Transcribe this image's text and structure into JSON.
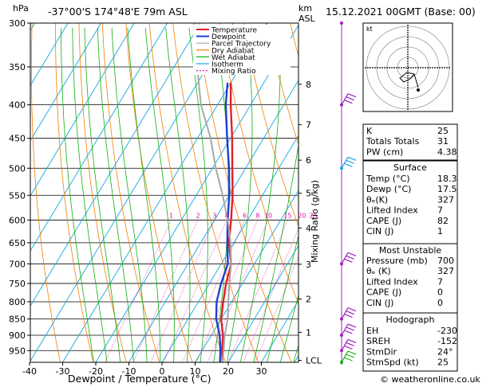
{
  "header": {
    "location": "-37°00'S  174°48'E  79m  ASL",
    "datetime": "15.12.2021  00GMT  (Base: 00)",
    "pressure_unit": "hPa",
    "alt_unit_1": "km",
    "alt_unit_2": "ASL",
    "credit": "© weatheronline.co.uk"
  },
  "colors": {
    "temperature": "#e0202a",
    "dewpoint": "#2040d0",
    "parcel": "#a8a8a8",
    "dry_adiabat": "#f08000",
    "wet_adiabat": "#10b010",
    "isotherm": "#10a8e0",
    "mixing_ratio": "#e010a0",
    "wind": "#a020c0",
    "wind_surface": "#10b010",
    "wind_mid": "#10a8e0"
  },
  "chart_data": {
    "type": "line",
    "title": "",
    "xlabel": "Dewpoint / Temperature (°C)",
    "ylabel": "Mixing Ratio (g/kg)",
    "xlim": [
      -40,
      38
    ],
    "x_ticks": [
      -40,
      -30,
      -20,
      -10,
      0,
      10,
      20,
      30
    ],
    "pressure_levels": [
      300,
      350,
      400,
      450,
      500,
      550,
      600,
      650,
      700,
      750,
      800,
      850,
      900,
      950
    ],
    "altitude_km": [
      {
        "label": "8",
        "p": 372
      },
      {
        "label": "7",
        "p": 429
      },
      {
        "label": "6",
        "p": 486
      },
      {
        "label": "5",
        "p": 546
      },
      {
        "label": "4",
        "p": 617
      },
      {
        "label": "3",
        "p": 701
      },
      {
        "label": "2",
        "p": 792
      },
      {
        "label": "1",
        "p": 891
      },
      {
        "label": "LCL",
        "p": 983
      }
    ],
    "mixing_ratio_labels": [
      "1",
      "2",
      "3",
      "4",
      "6",
      "8",
      "10",
      "15",
      "20",
      "25"
    ],
    "mixing_ratio_values": [
      1,
      2,
      3,
      4,
      6,
      8,
      10,
      15,
      20,
      25
    ],
    "legend": [
      "Temperature",
      "Dewpoint",
      "Parcel Trajectory",
      "Dry Adiabat",
      "Wet Adiabat",
      "Isotherm",
      "Mixing Ratio"
    ],
    "series": [
      {
        "name": "Temperature",
        "points": [
          {
            "p": 990,
            "t": 18.3
          },
          {
            "p": 950,
            "t": 16
          },
          {
            "p": 900,
            "t": 13.5
          },
          {
            "p": 850,
            "t": 10
          },
          {
            "p": 800,
            "t": 7.5
          },
          {
            "p": 750,
            "t": 5
          },
          {
            "p": 700,
            "t": 3
          },
          {
            "p": 650,
            "t": -1.5
          },
          {
            "p": 600,
            "t": -5
          },
          {
            "p": 550,
            "t": -9
          },
          {
            "p": 500,
            "t": -14
          },
          {
            "p": 450,
            "t": -19.5
          },
          {
            "p": 400,
            "t": -26
          },
          {
            "p": 370,
            "t": -30
          }
        ]
      },
      {
        "name": "Dewpoint",
        "points": [
          {
            "p": 990,
            "t": 17.5
          },
          {
            "p": 950,
            "t": 15.5
          },
          {
            "p": 900,
            "t": 12.5
          },
          {
            "p": 850,
            "t": 8.5
          },
          {
            "p": 800,
            "t": 5.5
          },
          {
            "p": 750,
            "t": 3.5
          },
          {
            "p": 700,
            "t": 2
          },
          {
            "p": 650,
            "t": -2
          },
          {
            "p": 600,
            "t": -6
          },
          {
            "p": 550,
            "t": -10
          },
          {
            "p": 500,
            "t": -15
          },
          {
            "p": 450,
            "t": -21
          },
          {
            "p": 400,
            "t": -27.5
          },
          {
            "p": 370,
            "t": -31
          }
        ]
      },
      {
        "name": "Parcel Trajectory",
        "points": [
          {
            "p": 990,
            "t": 18.3
          },
          {
            "p": 950,
            "t": 16.5
          },
          {
            "p": 900,
            "t": 14
          },
          {
            "p": 850,
            "t": 12
          },
          {
            "p": 800,
            "t": 9
          },
          {
            "p": 750,
            "t": 6
          },
          {
            "p": 700,
            "t": 3
          },
          {
            "p": 650,
            "t": -1
          },
          {
            "p": 600,
            "t": -6
          },
          {
            "p": 550,
            "t": -12
          },
          {
            "p": 500,
            "t": -19
          },
          {
            "p": 450,
            "t": -26
          },
          {
            "p": 400,
            "t": -35
          },
          {
            "p": 350,
            "t": -43
          },
          {
            "p": 300,
            "t": -52
          }
        ]
      }
    ],
    "wind_levels": [
      300,
      400,
      500,
      700,
      850,
      900,
      950,
      990
    ]
  },
  "hodograph": {
    "label": "kt"
  },
  "indices": {
    "rows": [
      {
        "label": "K",
        "value": "25"
      },
      {
        "label": "Totals Totals",
        "value": "31"
      },
      {
        "label": "PW (cm)",
        "value": "4.38"
      }
    ]
  },
  "surface": {
    "title": "Surface",
    "rows": [
      {
        "label": "Temp (°C)",
        "value": "18.3"
      },
      {
        "label": "Dewp (°C)",
        "value": "17.5"
      },
      {
        "label": "θₑ(K)",
        "value": "327"
      },
      {
        "label": "Lifted Index",
        "value": "7"
      },
      {
        "label": "CAPE (J)",
        "value": "82"
      },
      {
        "label": "CIN (J)",
        "value": "1"
      }
    ]
  },
  "most_unstable": {
    "title": "Most Unstable",
    "rows": [
      {
        "label": "Pressure (mb)",
        "value": "700"
      },
      {
        "label": "θₑ (K)",
        "value": "327"
      },
      {
        "label": "Lifted Index",
        "value": "7"
      },
      {
        "label": "CAPE (J)",
        "value": "0"
      },
      {
        "label": "CIN (J)",
        "value": "0"
      }
    ]
  },
  "hodograph_table": {
    "title": "Hodograph",
    "rows": [
      {
        "label": "EH",
        "value": "-230"
      },
      {
        "label": "SREH",
        "value": "-152"
      },
      {
        "label": "StmDir",
        "value": "24°"
      },
      {
        "label": "StmSpd (kt)",
        "value": "25"
      }
    ]
  }
}
